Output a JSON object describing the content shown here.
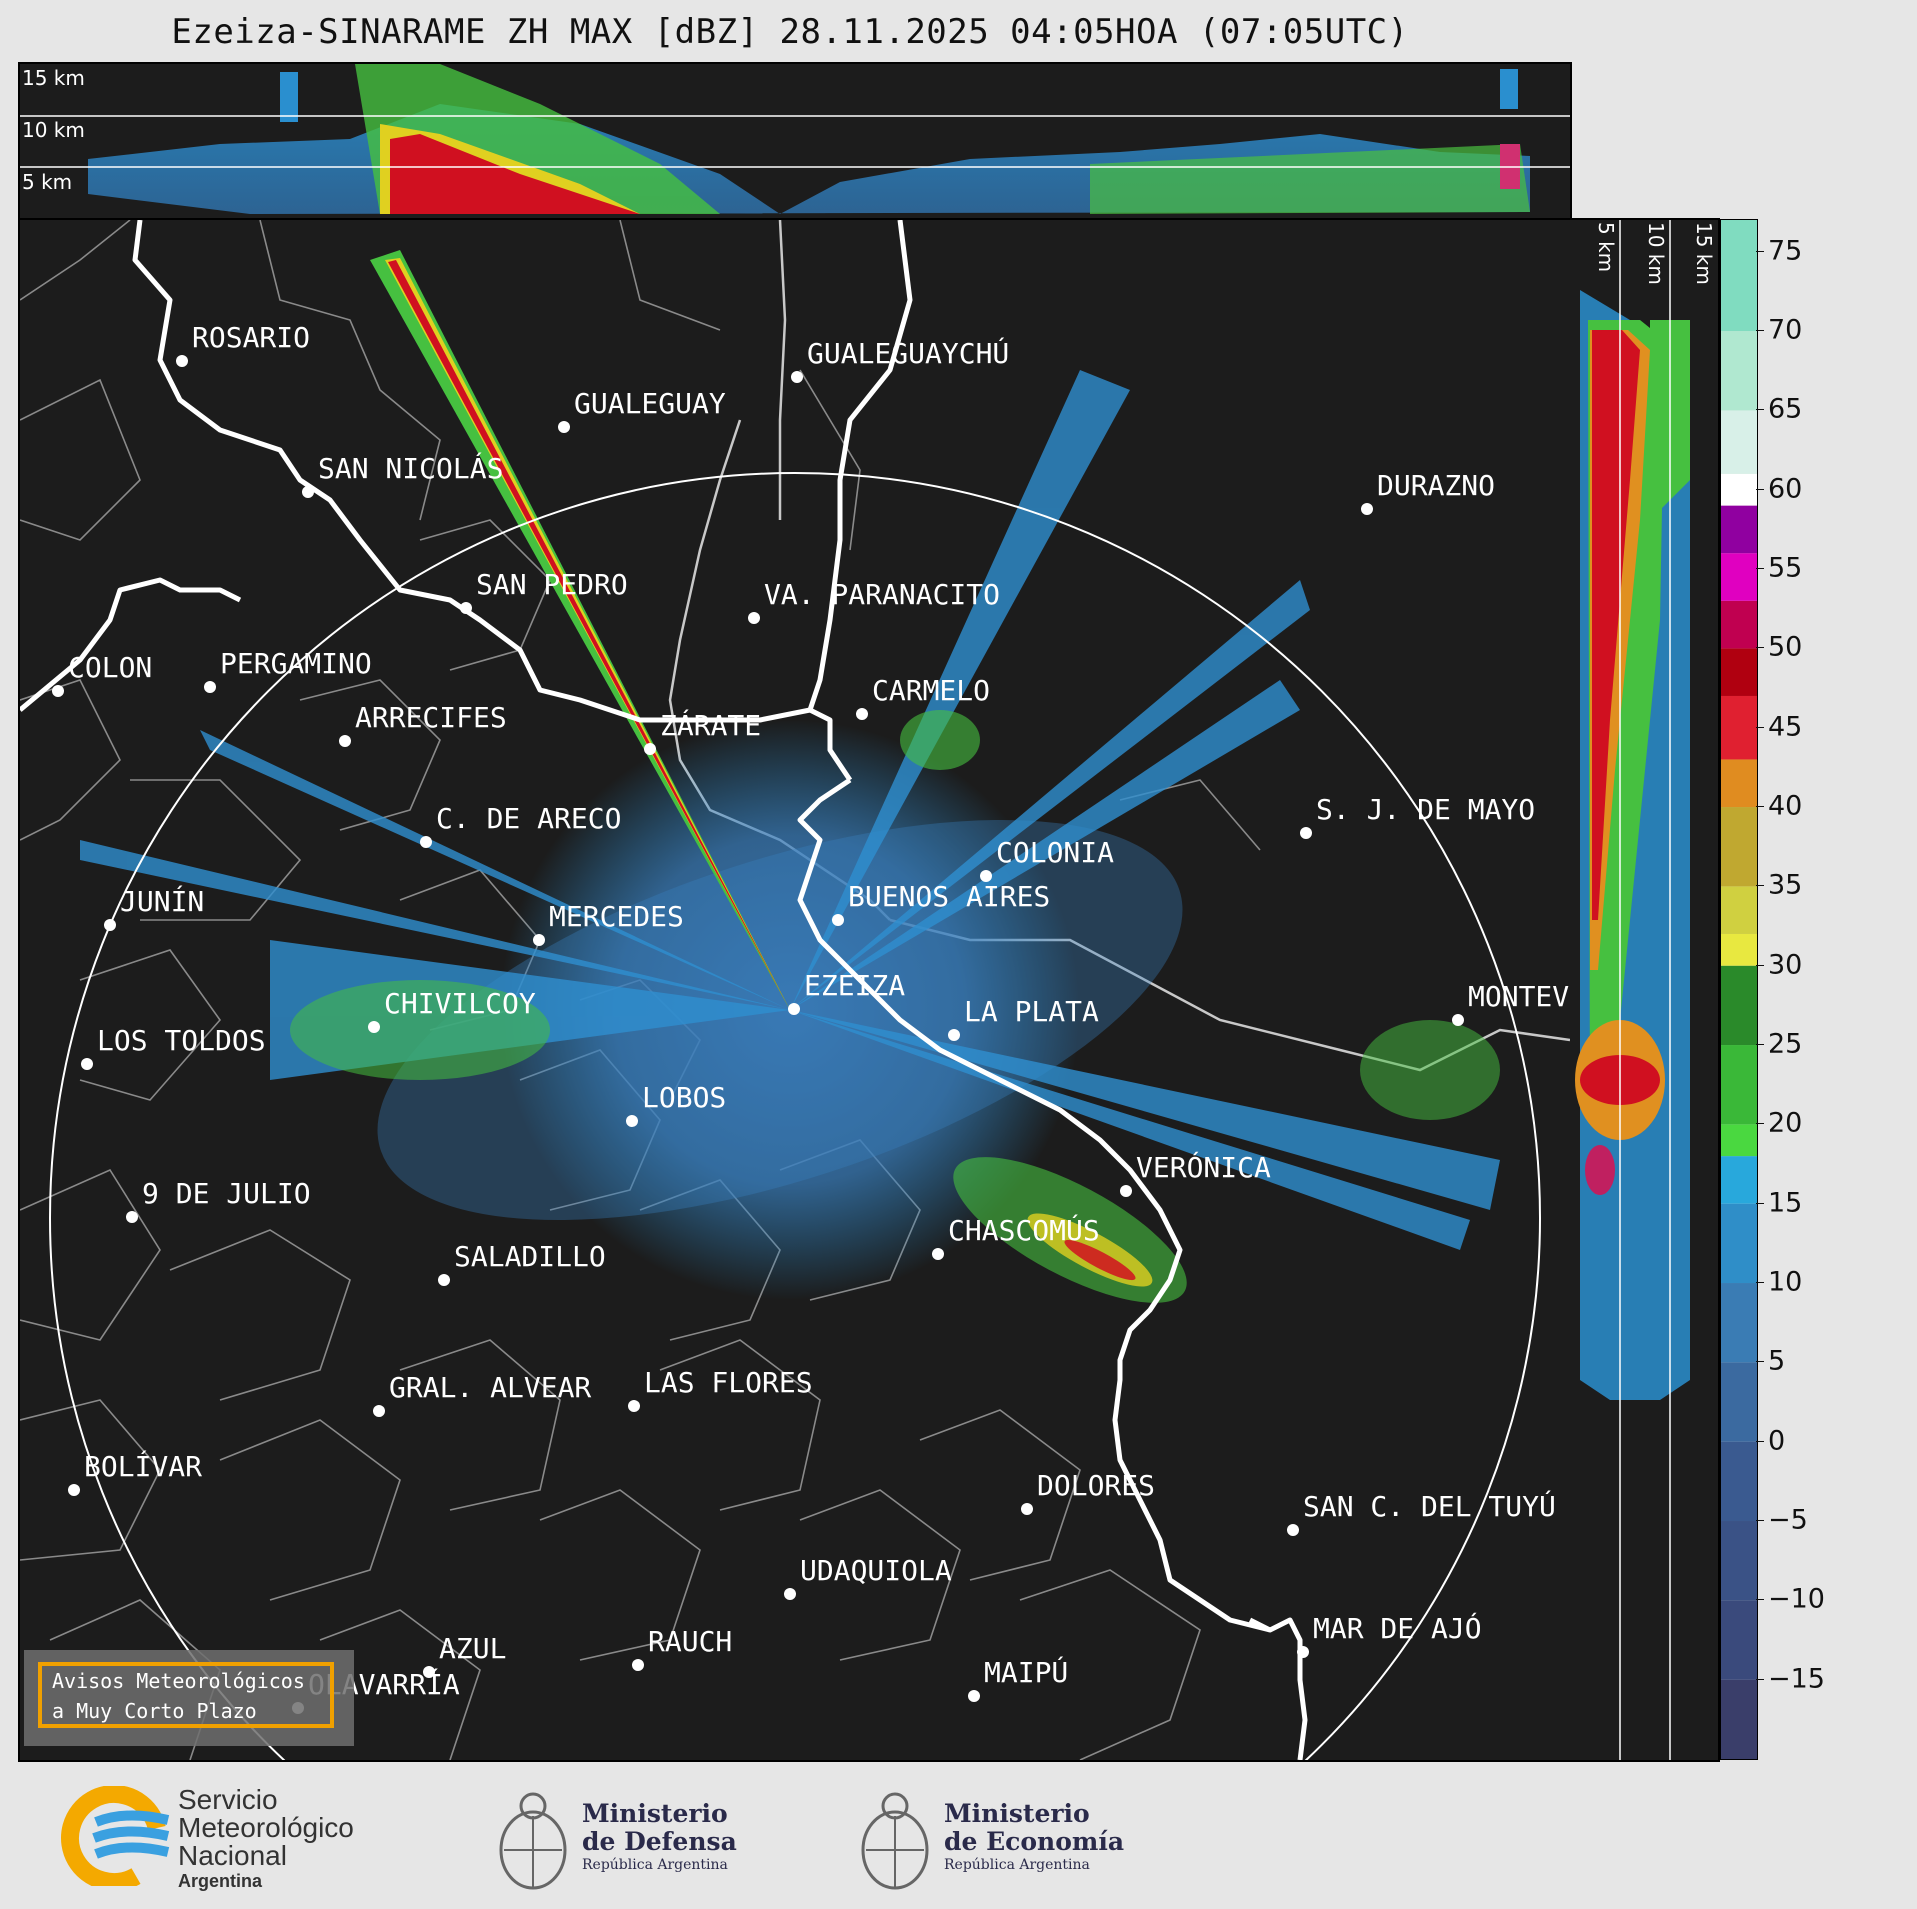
{
  "title": "Ezeiza-SINARAME ZH MAX [dBZ] 28.11.2025 04:05HOA (07:05UTC)",
  "height_labels": [
    "15 km",
    "10 km",
    "5 km"
  ],
  "side_labels": [
    "5 km",
    "10 km",
    "15 km"
  ],
  "colorbar": {
    "ticks": [
      "75",
      "70",
      "65",
      "60",
      "55",
      "50",
      "45",
      "40",
      "35",
      "30",
      "25",
      "20",
      "15",
      "10",
      "5",
      "0",
      "−5",
      "−10",
      "−15"
    ],
    "range": [
      -20,
      77
    ]
  },
  "cities": [
    {
      "name": "ROSARIO"
    },
    {
      "name": "GUALEGUAYCHÚ"
    },
    {
      "name": "GUALEGUAY"
    },
    {
      "name": "SAN NICOLÁS"
    },
    {
      "name": "DURAZNO"
    },
    {
      "name": "SAN PEDRO"
    },
    {
      "name": "VA. PARANACITO"
    },
    {
      "name": "COLON"
    },
    {
      "name": "PERGAMINO"
    },
    {
      "name": "CARMELO"
    },
    {
      "name": "ARRECIFES"
    },
    {
      "name": "ZÁRATE"
    },
    {
      "name": "S. J. DE MAYO"
    },
    {
      "name": "C. DE ARECO"
    },
    {
      "name": "COLONIA"
    },
    {
      "name": "BUENOS AIRES"
    },
    {
      "name": "JUNÍN"
    },
    {
      "name": "MERCEDES"
    },
    {
      "name": "EZEIZA"
    },
    {
      "name": "MONTEVIDEO"
    },
    {
      "name": "CHIVILCOY"
    },
    {
      "name": "LA PLATA"
    },
    {
      "name": "LOS TOLDOS"
    },
    {
      "name": "LOBOS"
    },
    {
      "name": "VERÓNICA"
    },
    {
      "name": "9 DE JULIO"
    },
    {
      "name": "CHASCOMÚS"
    },
    {
      "name": "SALADILLO"
    },
    {
      "name": "GRAL. ALVEAR"
    },
    {
      "name": "LAS FLORES"
    },
    {
      "name": "BOLÍVAR"
    },
    {
      "name": "DOLORES"
    },
    {
      "name": "SAN C. DEL TUYÚ"
    },
    {
      "name": "UDAQUIOLA"
    },
    {
      "name": "MAR DE AJÓ"
    },
    {
      "name": "AZUL"
    },
    {
      "name": "RAUCH"
    },
    {
      "name": "OLAVARRÍA"
    },
    {
      "name": "MAIPÚ"
    }
  ],
  "warning": {
    "line1": "Avisos Meteorológicos",
    "line2": "a Muy Corto Plazo"
  },
  "logos": {
    "smn": {
      "l1": "Servicio",
      "l2": "Meteorológico",
      "l3": "Nacional",
      "l4": "Argentina"
    },
    "defensa": {
      "l1": "Ministerio",
      "l2": "de Defensa",
      "l3": "República Argentina"
    },
    "economia": {
      "l1": "Ministerio",
      "l2": "de Economía",
      "l3": "República Argentina"
    }
  }
}
